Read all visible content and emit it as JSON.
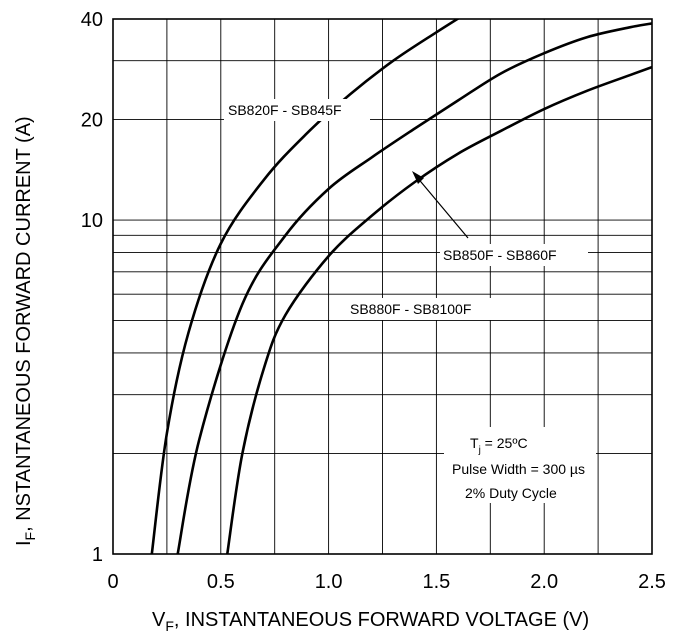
{
  "chart_data": {
    "type": "line",
    "xlabel": {
      "main": "V",
      "sub": "F",
      "rest": ", INSTANTANEOUS FORWARD VOLTAGE (V)"
    },
    "ylabel": {
      "main": "I",
      "sub": "F",
      "rest": ", NSTANTANEOUS FORWARD CURRENT (A)"
    },
    "xlim": [
      0,
      2.5
    ],
    "ylim": [
      1,
      40
    ],
    "yscale": "log",
    "grid": true,
    "x_ticks": [
      {
        "value": 0,
        "label": "0"
      },
      {
        "value": 0.5,
        "label": "0.5"
      },
      {
        "value": 1.0,
        "label": "1.0"
      },
      {
        "value": 1.5,
        "label": "1.5"
      },
      {
        "value": 2.0,
        "label": "2.0"
      },
      {
        "value": 2.5,
        "label": "2.5"
      }
    ],
    "y_ticks": [
      {
        "value": 1,
        "label": "1"
      },
      {
        "value": 10,
        "label": "10"
      },
      {
        "value": 20,
        "label": "20"
      },
      {
        "value": 40,
        "label": "40"
      }
    ],
    "series": [
      {
        "name": "SB820F - SB845F",
        "points": [
          [
            0.18,
            1.0
          ],
          [
            0.25,
            2.3
          ],
          [
            0.35,
            4.6
          ],
          [
            0.5,
            8.5
          ],
          [
            0.7,
            13.2
          ],
          [
            0.9,
            18.2
          ],
          [
            1.1,
            23.8
          ],
          [
            1.3,
            30.0
          ],
          [
            1.5,
            36.5
          ],
          [
            1.65,
            42.0
          ]
        ]
      },
      {
        "name": "SB850F - SB860F",
        "points": [
          [
            0.3,
            1.0
          ],
          [
            0.4,
            2.2
          ],
          [
            0.6,
            5.6
          ],
          [
            0.8,
            9.0
          ],
          [
            1.0,
            12.4
          ],
          [
            1.2,
            15.4
          ],
          [
            1.4,
            18.8
          ],
          [
            1.6,
            22.8
          ],
          [
            1.8,
            27.5
          ],
          [
            2.0,
            31.6
          ],
          [
            2.2,
            35.3
          ],
          [
            2.4,
            37.8
          ],
          [
            2.5,
            38.8
          ]
        ]
      },
      {
        "name": "SB880F - SB8100F",
        "points": [
          [
            0.53,
            1.0
          ],
          [
            0.6,
            2.0
          ],
          [
            0.7,
            3.6
          ],
          [
            0.8,
            5.2
          ],
          [
            1.0,
            7.8
          ],
          [
            1.2,
            10.3
          ],
          [
            1.4,
            13.0
          ],
          [
            1.6,
            15.8
          ],
          [
            1.8,
            18.5
          ],
          [
            2.0,
            21.5
          ],
          [
            2.2,
            24.4
          ],
          [
            2.4,
            27.2
          ],
          [
            2.5,
            28.7
          ]
        ]
      }
    ],
    "annotations": {
      "junction_temp": {
        "main": "T",
        "sub": "j",
        "rest": " =  25ºC"
      },
      "pulse_width": "Pulse Width =  300 µs",
      "duty_cycle": "2% Duty Cycle"
    }
  }
}
